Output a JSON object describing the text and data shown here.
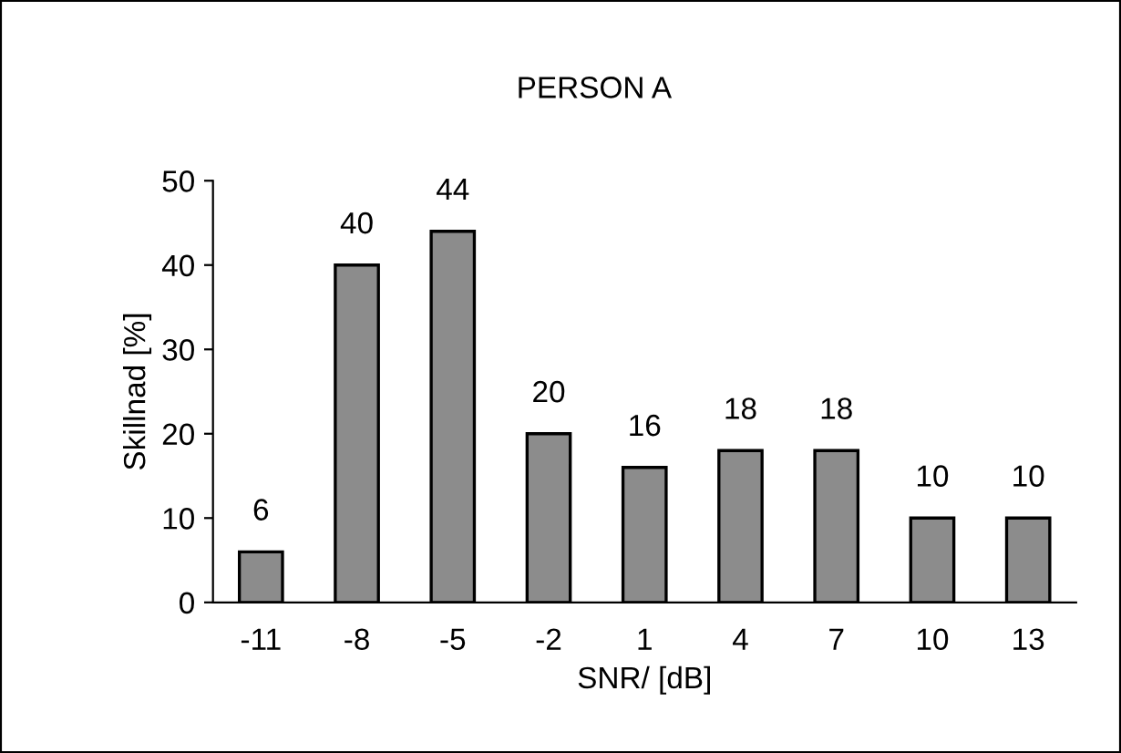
{
  "chart_data": {
    "type": "bar",
    "title": "PERSON A",
    "xlabel": "SNR/ [dB]",
    "ylabel": "Skillnad [%]",
    "categories": [
      "-11",
      "-8",
      "-5",
      "-2",
      "1",
      "4",
      "7",
      "10",
      "13"
    ],
    "values": [
      6,
      40,
      44,
      20,
      16,
      18,
      18,
      10,
      10
    ],
    "color": "#8c8c8c",
    "ylim": [
      0,
      50
    ],
    "yticks": [
      0,
      10,
      20,
      30,
      40,
      50
    ],
    "grid": false,
    "data_labels": true
  }
}
